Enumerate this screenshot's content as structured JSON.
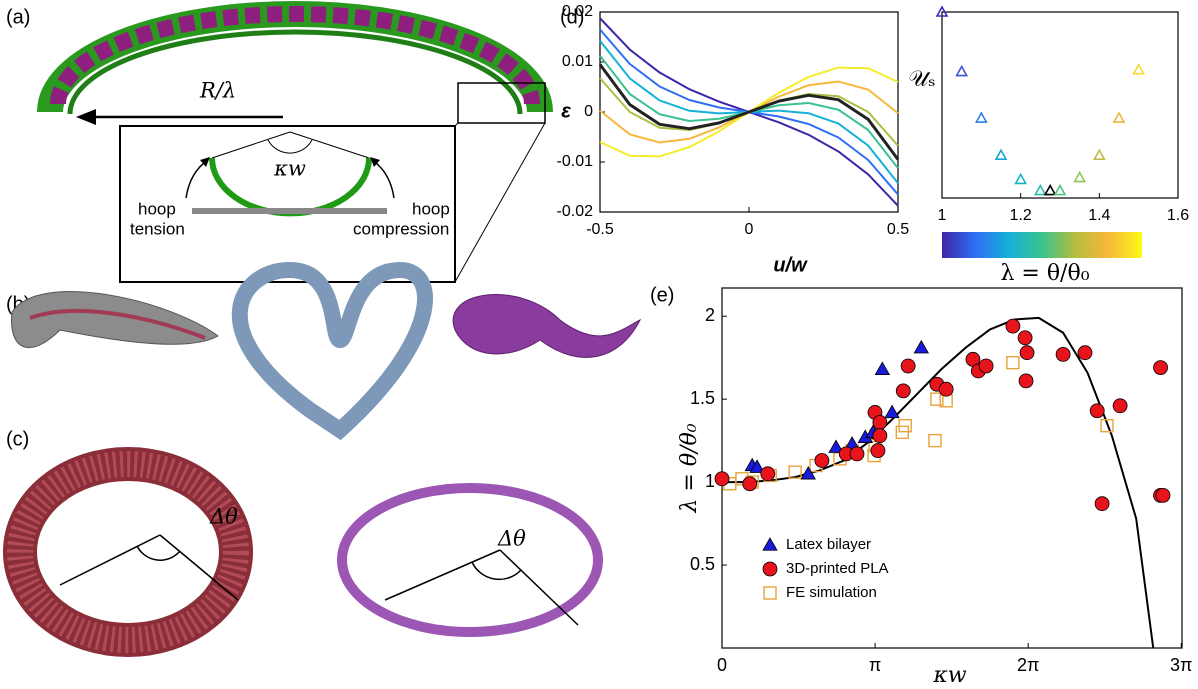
{
  "illustrations": {
    "panel_labels": [
      "(a)",
      "(b)",
      "(c)",
      "(d)",
      "(e)"
    ],
    "a": {
      "radius": "R/λ",
      "angle": "κw",
      "left": [
        "hoop",
        "tension"
      ],
      "right": [
        "hoop",
        "compression"
      ]
    },
    "c": {
      "angle_left": "Δθ",
      "angle_right": "Δθ"
    }
  },
  "chart_data": [
    {
      "type": "line",
      "xlabel": "u/w",
      "ylabel": "ε",
      "x": [
        -0.5,
        -0.4,
        -0.3,
        -0.2,
        -0.1,
        0,
        0.1,
        0.2,
        0.3,
        0.4,
        0.5
      ],
      "xlim": [
        -0.5,
        0.5
      ],
      "xticks": [
        -0.5,
        0,
        0.5
      ],
      "ylim": [
        -0.02,
        0.02
      ],
      "yticks": [
        -0.02,
        -0.01,
        0,
        0.01,
        0.02
      ],
      "series": [
        {
          "color": "#3e26a8",
          "values": [
            0.01875,
            0.01248,
            0.00789,
            0.00456,
            0.00207,
            0,
            -0.00207,
            -0.00456,
            -0.00789,
            -0.01248,
            -0.01875
          ]
        },
        {
          "color": "#2e6ef5",
          "values": [
            0.0165,
            0.0096,
            0.0051,
            0.0024,
            0.0009,
            0,
            -0.0009,
            -0.0024,
            -0.0051,
            -0.0096,
            -0.0165
          ]
        },
        {
          "color": "#16b1d8",
          "values": [
            0.01425,
            0.00672,
            0.00231,
            0.00024,
            -0.00027,
            0,
            0.00027,
            -0.00024,
            -0.00231,
            -0.00672,
            -0.01425
          ]
        },
        {
          "color": "#3bc28e",
          "values": [
            0.01125,
            0.0036,
            -0.00045,
            -0.0018,
            -0.00135,
            0,
            0.00135,
            0.0018,
            0.00045,
            -0.0036,
            -0.01125
          ]
        },
        {
          "color": "#a8c140",
          "values": [
            0.00675,
            0,
            -0.00315,
            -0.0036,
            -0.00225,
            0,
            0.00225,
            0.0036,
            0.00315,
            0,
            -0.00675
          ]
        },
        {
          "color": "#f6b83c",
          "values": [
            0.00025,
            -0.00448,
            -0.00609,
            -0.00536,
            -0.00307,
            0,
            0.00307,
            0.00536,
            0.00609,
            0.00448,
            -0.00025
          ]
        },
        {
          "color": "#f5ec2a",
          "values": [
            -0.006,
            -0.00876,
            -0.00888,
            -0.00702,
            -0.00384,
            0,
            0.00384,
            0.00702,
            0.00888,
            0.00876,
            0.006
          ]
        },
        {
          "color": "#222222",
          "values": [
            0.0095,
            0.00148,
            -0.00246,
            -0.00334,
            -0.00218,
            0,
            0.00218,
            0.00334,
            0.00246,
            -0.00148,
            -0.0095
          ]
        }
      ]
    },
    {
      "type": "scatter",
      "ylabel": "𝒰ₛ",
      "xlim": [
        1,
        1.6
      ],
      "xticks": [
        1,
        1.2,
        1.4,
        1.6
      ],
      "ylim": [
        0,
        1
      ],
      "series": [
        {
          "marker": "triangle-open",
          "x": [
            1.0,
            1.05,
            1.1,
            1.15,
            1.2,
            1.25,
            1.275,
            1.3,
            1.35,
            1.4,
            1.45,
            1.5
          ],
          "values": [
            1.0,
            0.68,
            0.43,
            0.23,
            0.1,
            0.04,
            0.04,
            0.04,
            0.11,
            0.23,
            0.43,
            0.69
          ],
          "colors": [
            "#3a2bb8",
            "#3a55d9",
            "#2f7fe8",
            "#1da2d8",
            "#12b5c0",
            "#25c0a5",
            "#000000",
            "#4fc47e",
            "#8ec45a",
            "#c8b845",
            "#f0b43a",
            "#f5d930"
          ]
        }
      ],
      "colorbar": {
        "label": "λ = θ/θ₀",
        "colors": [
          "#3e26a8",
          "#2e6ef5",
          "#16b1d8",
          "#3bc28e",
          "#b4bd3c",
          "#f9b73a",
          "#f9fb15"
        ]
      }
    },
    {
      "type": "scatter",
      "xlabel": "κw",
      "ylabel": "λ = θ/θ₀",
      "legend": "lower left",
      "xlim": [
        0,
        9.44
      ],
      "xticks": [
        0,
        {
          "value": 3.1416,
          "label": "π"
        },
        {
          "value": 6.2832,
          "label": "2π"
        },
        {
          "value": 9.4248,
          "label": "3π"
        }
      ],
      "ylim": [
        0,
        2.17
      ],
      "yticks": [
        0.5,
        1,
        1.5,
        2
      ],
      "series": [
        {
          "style": "line",
          "color": "#000000",
          "x": [
            0,
            0.5,
            1,
            1.5,
            2,
            2.5,
            3,
            3.5,
            4,
            4.5,
            5,
            5.5,
            6,
            6.5,
            7,
            7.5,
            8,
            8.5,
            8.85
          ],
          "values": [
            1.0,
            1.0,
            1.01,
            1.03,
            1.07,
            1.13,
            1.24,
            1.38,
            1.53,
            1.68,
            1.81,
            1.92,
            1.98,
            1.99,
            1.9,
            1.66,
            1.28,
            0.78,
            0
          ]
        },
        {
          "name": "FE simulation",
          "marker": "square-open",
          "color": "#e8a33a",
          "x": [
            0.16,
            0.41,
            0.62,
            0.99,
            1.5,
            1.93,
            2.42,
            2.67,
            3.12,
            3.14,
            3.16,
            3.7,
            3.76,
            4.41,
            4.6,
            4.37,
            5.97,
            7.9
          ],
          "values": [
            0.99,
            1.02,
            1.0,
            1.04,
            1.06,
            1.1,
            1.14,
            1.19,
            1.16,
            1.22,
            1.28,
            1.3,
            1.34,
            1.5,
            1.49,
            1.25,
            1.72,
            1.34
          ]
        },
        {
          "name": "Latex bilayer",
          "marker": "triangle",
          "color": "#1a1adb",
          "x": [
            0.62,
            0.72,
            1.77,
            2.34,
            2.67,
            2.94,
            3.1,
            3.29,
            3.49,
            4.09
          ],
          "values": [
            1.1,
            1.09,
            1.05,
            1.21,
            1.23,
            1.27,
            1.3,
            1.68,
            1.42,
            1.81
          ]
        },
        {
          "name": "3D-printed PLA",
          "marker": "circle",
          "color": "#e8141c",
          "x": [
            0,
            0.57,
            0.94,
            2.05,
            2.55,
            2.77,
            3.14,
            3.24,
            3.24,
            3.2,
            3.72,
            3.82,
            4.41,
            4.6,
            5.15,
            5.26,
            5.42,
            5.97,
            6.22,
            6.26,
            6.24,
            7.0,
            7.45,
            7.7,
            7.8,
            8.17,
            9.0,
            9.0,
            9.05
          ],
          "values": [
            1.02,
            0.99,
            1.05,
            1.13,
            1.17,
            1.17,
            1.42,
            1.36,
            1.28,
            1.19,
            1.55,
            1.7,
            1.59,
            1.56,
            1.74,
            1.67,
            1.7,
            1.94,
            1.87,
            1.78,
            1.61,
            1.77,
            1.78,
            1.43,
            0.87,
            1.46,
            1.69,
            0.92,
            0.92
          ]
        }
      ]
    }
  ]
}
